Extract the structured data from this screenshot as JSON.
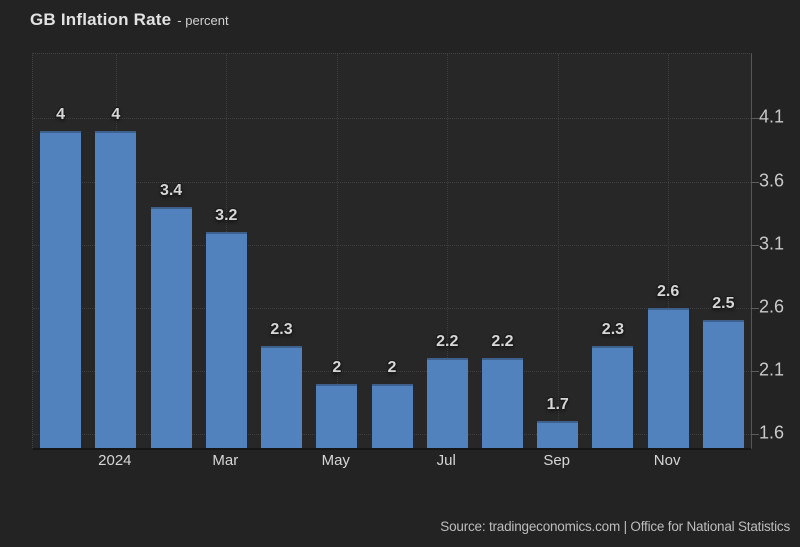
{
  "header": {
    "title": "GB Inflation Rate",
    "subtitle": "- percent"
  },
  "footer": {
    "source": "Source: tradingeconomics.com | Office for National Statistics"
  },
  "colors": {
    "bar_fill": "#5182bd",
    "bar_top_edge": "#3d608d",
    "page_background": "#232323",
    "plot_background": "#272727",
    "gridline": "#3e3e3e",
    "axis_line": "#565656",
    "value_label": "#d6d6d6",
    "axis_label": "#c9c9c9"
  },
  "chart_data": {
    "type": "bar",
    "title": "GB Inflation Rate",
    "ylabel": "percent",
    "values": [
      4,
      4,
      3.4,
      3.2,
      2.3,
      2,
      2,
      2.2,
      2.2,
      1.7,
      2.3,
      2.6,
      2.5
    ],
    "bar_labels": [
      "4",
      "4",
      "3.4",
      "3.2",
      "2.3",
      "2",
      "2",
      "2.2",
      "2.2",
      "1.7",
      "2.3",
      "2.6",
      "2.5"
    ],
    "x_ticks": [
      {
        "slot": 1,
        "label": "2024"
      },
      {
        "slot": 3,
        "label": "Mar"
      },
      {
        "slot": 5,
        "label": "May"
      },
      {
        "slot": 7,
        "label": "Jul"
      },
      {
        "slot": 9,
        "label": "Sep"
      },
      {
        "slot": 11,
        "label": "Nov"
      }
    ],
    "y_ticks": [
      4.1,
      3.6,
      3.1,
      2.6,
      2.1,
      1.6
    ],
    "ylim": [
      1.49,
      4.61
    ],
    "grid": true,
    "legend": false
  }
}
